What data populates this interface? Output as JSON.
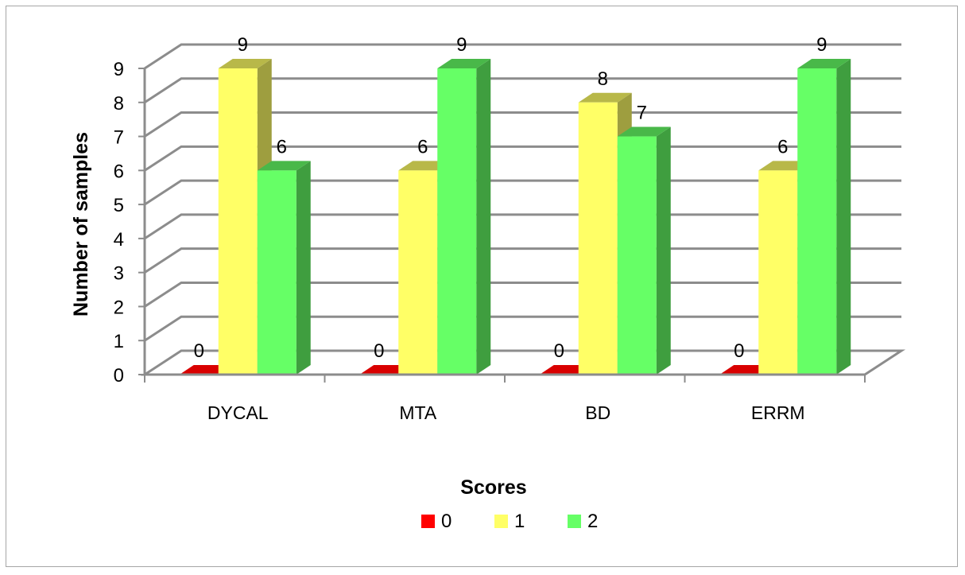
{
  "chart_data": {
    "type": "bar",
    "style": "3d-clustered-column",
    "categories": [
      "DYCAL",
      "MTA",
      "BD",
      "ERRM"
    ],
    "series": [
      {
        "name": "0",
        "values": [
          0,
          0,
          0,
          0
        ],
        "color": "#ff0000"
      },
      {
        "name": "1",
        "values": [
          9,
          6,
          8,
          6
        ],
        "color": "#ffff66"
      },
      {
        "name": "2",
        "values": [
          6,
          9,
          7,
          9
        ],
        "color": "#66ff66"
      }
    ],
    "ylabel": "Number of samples",
    "xlabel": "Scores",
    "ylim": [
      0,
      9
    ],
    "yticks": [
      "0",
      "1",
      "2",
      "3",
      "4",
      "5",
      "6",
      "7",
      "8",
      "9"
    ],
    "grid": true,
    "legend": "bottom",
    "data_labels": true
  }
}
